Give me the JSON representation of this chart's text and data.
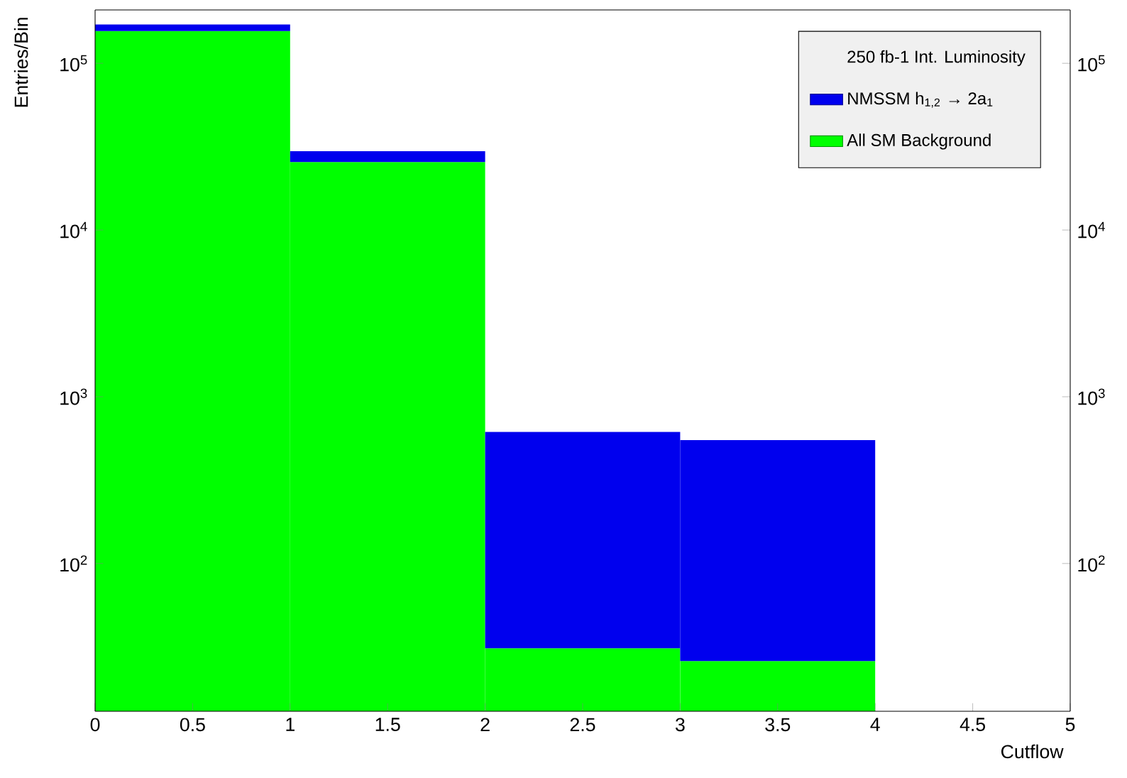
{
  "chart_data": {
    "type": "bar",
    "xlabel": "Cutflow",
    "ylabel": "Entries/Bin",
    "legend_title": "250 fb-1 Int. Luminosity",
    "x": [
      0.5,
      1.5,
      2.5,
      3.5
    ],
    "stacked": true,
    "series": [
      {
        "name": "All SM Background",
        "color": "#00ff00",
        "values": [
          156000,
          25600,
          31,
          26
        ]
      },
      {
        "name": "NMSSM h$_{1,2}$ → 2a$_{1}$",
        "color": "#0000ee",
        "values": [
          15000,
          4100,
          585,
          524
        ]
      }
    ],
    "log": "y",
    "grid": false,
    "legend": "top right",
    "xlim": [
      0,
      5
    ],
    "xticks": [
      0,
      0.5,
      1,
      1.5,
      2,
      2.5,
      3,
      3.5,
      4,
      4.5,
      5
    ],
    "ylim": [
      13,
      209000
    ],
    "yticks": [
      {
        "value": 100,
        "label": "10$^{2}$"
      },
      {
        "value": 1000,
        "label": "10$^{3}$"
      },
      {
        "value": 10000,
        "label": "10$^{4}$"
      },
      {
        "value": 100000,
        "label": "10$^{5}$"
      }
    ]
  }
}
